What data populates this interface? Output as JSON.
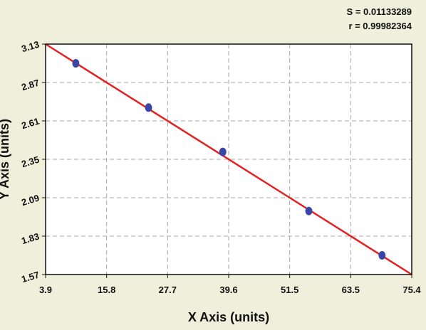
{
  "chart_data": {
    "type": "scatter",
    "title": "",
    "xlabel": "X Axis (units)",
    "ylabel": "Y Axis (units)",
    "xlim": [
      3.9,
      75.4
    ],
    "ylim": [
      1.57,
      3.13
    ],
    "x_ticks": [
      "3.9",
      "15.8",
      "27.7",
      "39.6",
      "51.5",
      "63.5",
      "75.4"
    ],
    "y_ticks": [
      "1.57",
      "1.83",
      "2.09",
      "2.35",
      "2.61",
      "2.87",
      "3.13"
    ],
    "grid": true,
    "stats": {
      "s_label": "S = 0.01133289",
      "r_label": "r = 0.99982364"
    },
    "points": [
      {
        "x": 9.8,
        "y": 3.0
      },
      {
        "x": 24.0,
        "y": 2.7
      },
      {
        "x": 38.5,
        "y": 2.4
      },
      {
        "x": 55.3,
        "y": 2.0
      },
      {
        "x": 69.6,
        "y": 1.7
      }
    ],
    "fit_line": {
      "x": [
        3.9,
        75.4
      ],
      "y": [
        3.13,
        1.57
      ]
    },
    "colors": {
      "background": "#f0efdc",
      "plot_background": "#ffffff",
      "grid": "#a8a8a8",
      "fit_line": "#e32222",
      "points": "#3a46a6"
    }
  }
}
